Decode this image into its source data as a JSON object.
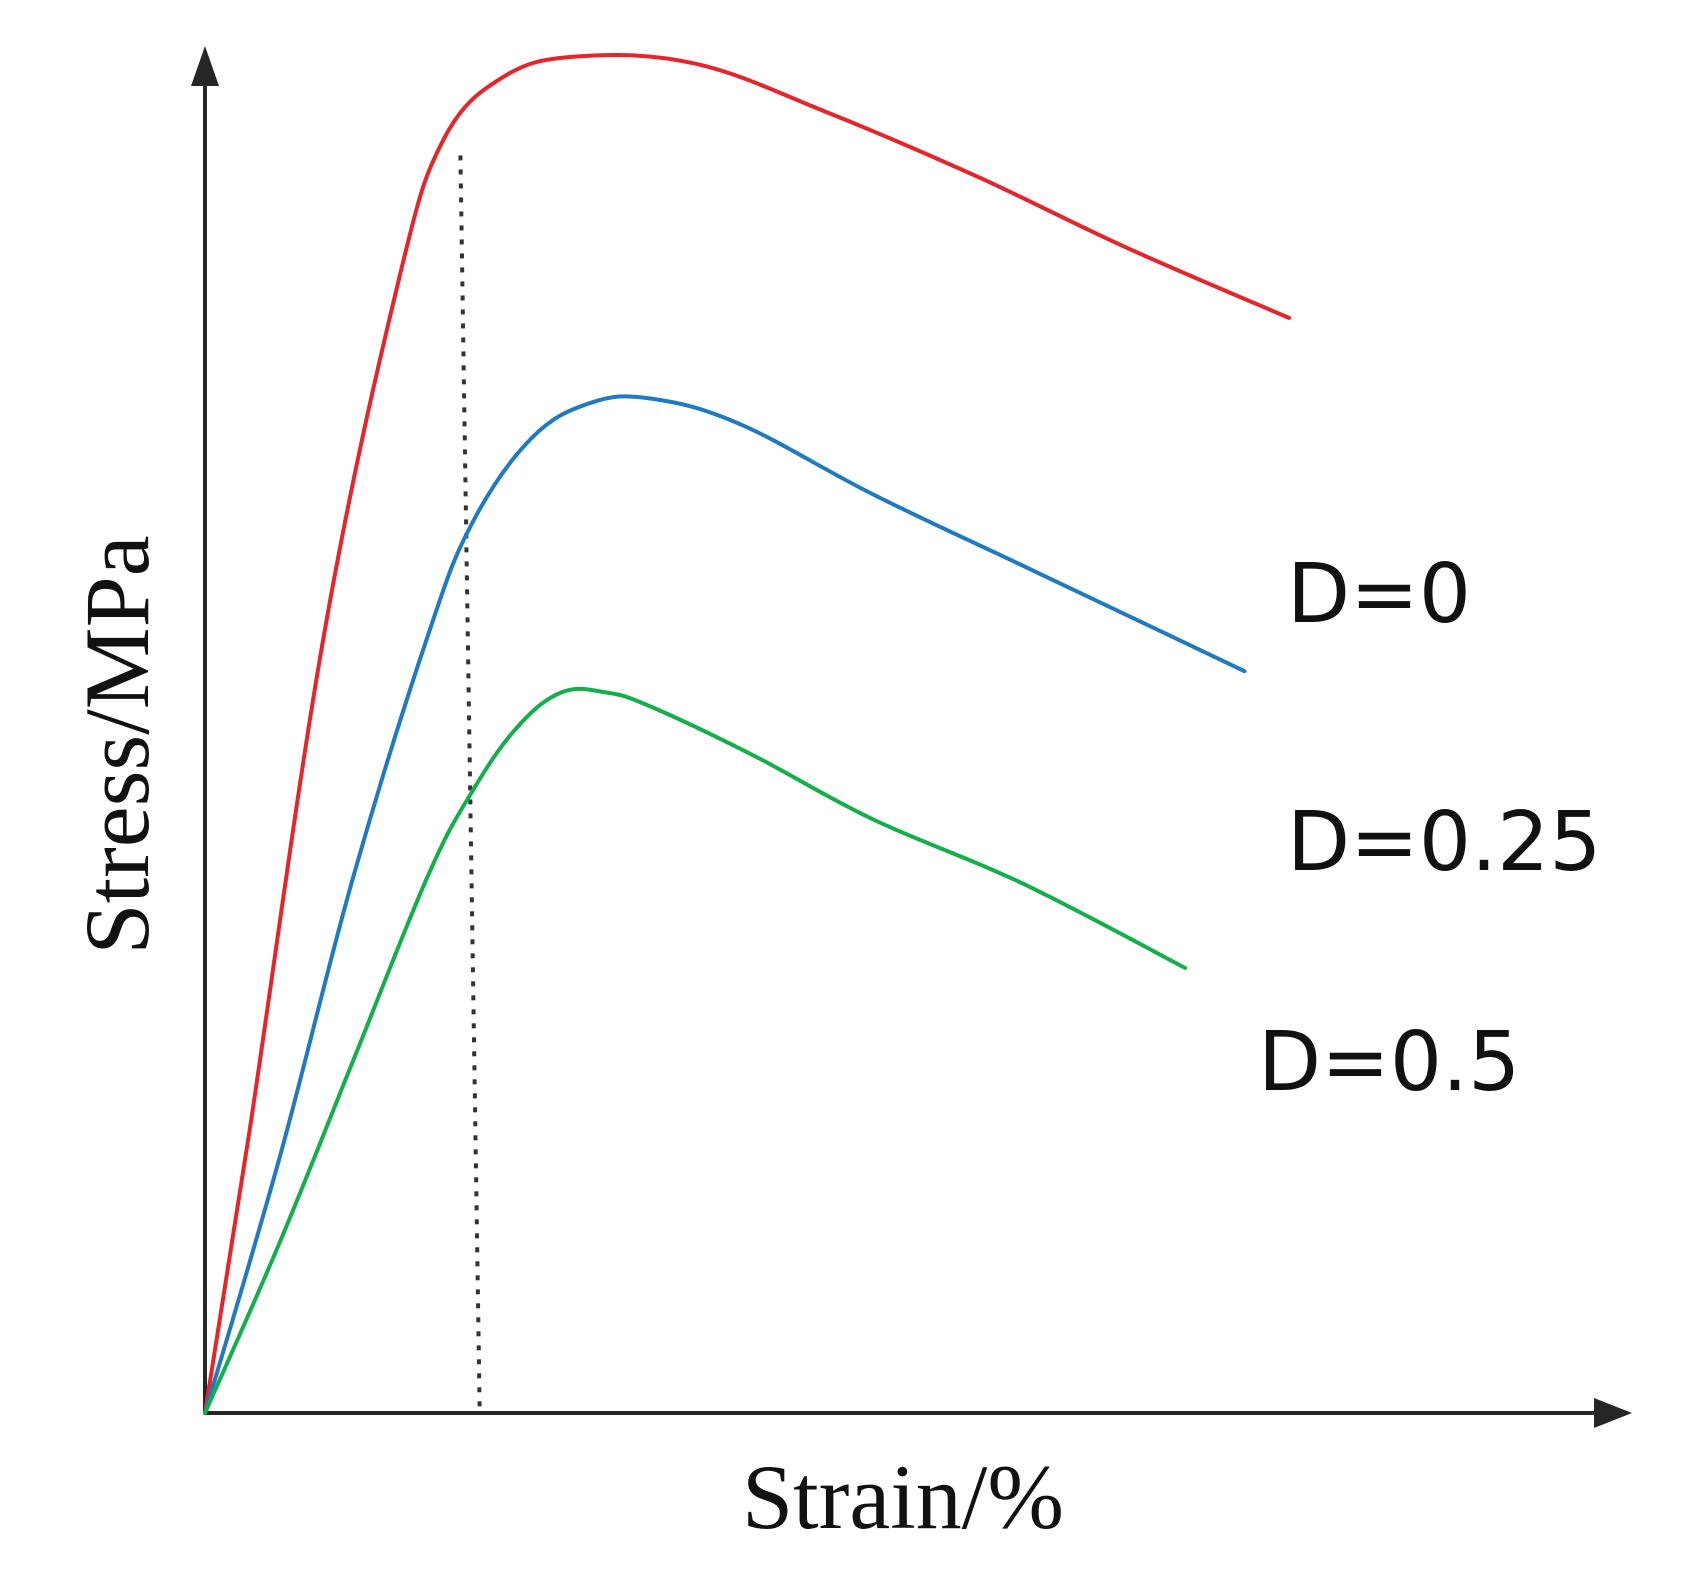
{
  "chart_data": {
    "type": "line",
    "title": "",
    "xlabel": "Strain/%",
    "ylabel": "Stress/MPa",
    "xlim": [
      0,
      1.0
    ],
    "ylim": [
      0,
      1.0
    ],
    "grid": false,
    "ticks_shown": false,
    "legend": "inline labels at the right end of each curve",
    "series": [
      {
        "name": "D=0",
        "color": "#e8242b",
        "x": [
          0.0,
          0.03,
          0.08,
          0.13,
          0.16,
          0.2,
          0.25,
          0.33,
          0.42,
          0.52,
          0.62,
          0.73
        ],
        "y": [
          0.0,
          0.2,
          0.55,
          0.8,
          0.9,
          0.945,
          0.96,
          0.955,
          0.92,
          0.875,
          0.825,
          0.775
        ]
      },
      {
        "name": "D=0.25",
        "color": "#1f7ac2",
        "x": [
          0.0,
          0.05,
          0.1,
          0.15,
          0.18,
          0.22,
          0.26,
          0.3,
          0.36,
          0.45,
          0.55,
          0.65,
          0.7
        ],
        "y": [
          0.0,
          0.18,
          0.38,
          0.55,
          0.63,
          0.69,
          0.715,
          0.718,
          0.7,
          0.65,
          0.6,
          0.55,
          0.525
        ]
      },
      {
        "name": "D=0.5",
        "color": "#14ae4c",
        "x": [
          0.0,
          0.05,
          0.1,
          0.15,
          0.18,
          0.21,
          0.24,
          0.27,
          0.3,
          0.37,
          0.45,
          0.55,
          0.66
        ],
        "y": [
          0.0,
          0.12,
          0.25,
          0.38,
          0.44,
          0.485,
          0.51,
          0.51,
          0.5,
          0.465,
          0.42,
          0.375,
          0.315
        ]
      }
    ],
    "reference_line": {
      "style": "dotted",
      "x_from": 0.172,
      "x_to": 0.185,
      "y_top": 0.89,
      "y_bottom": 0.0
    }
  }
}
